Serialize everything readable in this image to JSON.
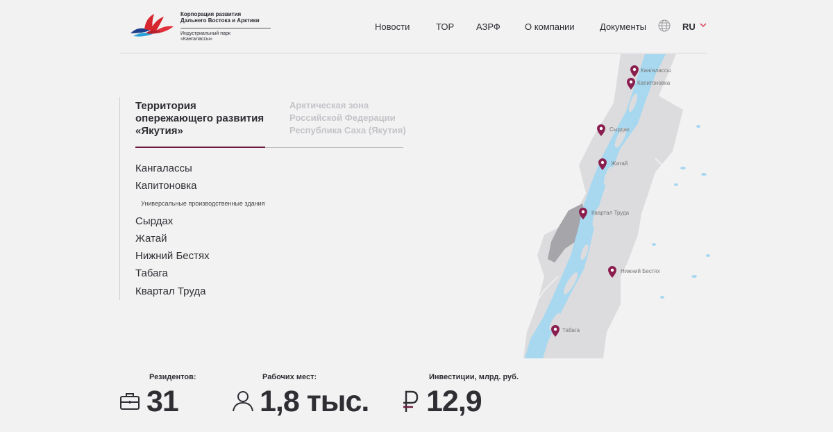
{
  "logo": {
    "line1": "Корпорация развития",
    "line2": "Дальнего Востока и Арктики",
    "sub1": "Индустриальный парк",
    "sub2": "«Кангалассы»"
  },
  "nav": {
    "items": [
      "Новости",
      "ТОР",
      "АЗРФ",
      "О компании",
      "Документы"
    ],
    "language": "RU"
  },
  "tabs": {
    "active": [
      "Территория",
      "опережающего развития",
      "«Якутия»"
    ],
    "inactive": [
      "Арктическая зона",
      "Российской Федерации",
      "Республика Саха (Якутия)"
    ]
  },
  "sites": [
    {
      "label": "Кангалассы"
    },
    {
      "label": "Капитоновка",
      "sub": "Универсальные производственные здания"
    },
    {
      "label": "Сырдах"
    },
    {
      "label": "Жатай"
    },
    {
      "label": "Нижний Бестях"
    },
    {
      "label": "Табага"
    },
    {
      "label": "Квартал Труда"
    }
  ],
  "map_pins": [
    "Кангалассы",
    "Капитоновка",
    "Сырдах",
    "Жатай",
    "Квартал Труда",
    "Нижний Бестях",
    "Табага"
  ],
  "stats": {
    "residents_label": "Резидентов:",
    "residents_value": "31",
    "jobs_label": "Рабочих мест:",
    "jobs_value": "1,8 тыс.",
    "invest_label": "Инвестиции, млрд. руб.",
    "invest_value": "12,9"
  },
  "colors": {
    "accent": "#6d1a3e",
    "pin": "#8a1f4f",
    "river": "#a7d8f0",
    "land": "#dcdcde",
    "city": "#9a9a9e",
    "lang_chevron": "#d7263d"
  },
  "icons": {
    "globe": "globe-icon",
    "chevron": "chevron-down-icon",
    "residents": "briefcase-icon",
    "jobs": "person-icon",
    "invest": "ruble-icon",
    "pin": "map-pin-icon"
  }
}
